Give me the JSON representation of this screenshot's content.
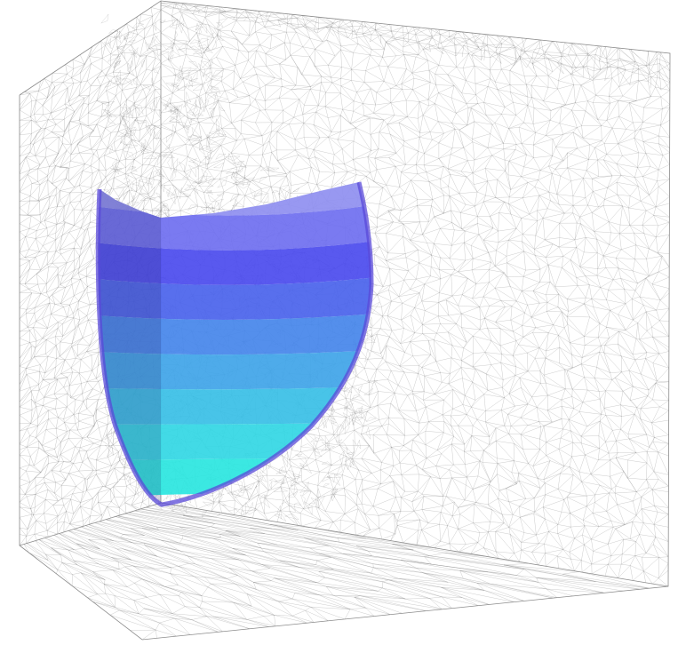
{
  "scene": {
    "background": "#ffffff",
    "mesh_color": "#6e6e6e",
    "contour_colors": [
      "#8f8ff0",
      "#6f6ff0",
      "#4b4bee",
      "#4a63ec",
      "#4586ea",
      "#3fa4e8",
      "#38bfe6",
      "#32d7e4",
      "#2ae6e0"
    ],
    "rim_color": "#5a4ad8"
  }
}
